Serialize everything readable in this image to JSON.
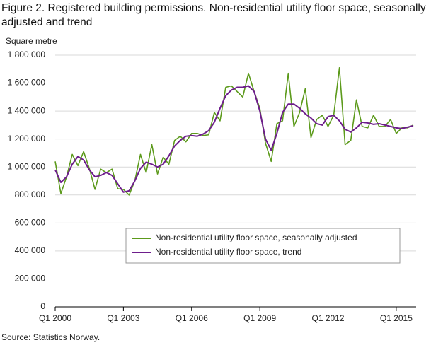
{
  "chart_data": {
    "type": "line",
    "title": "Figure 2. Registered building permissions. Non-residential utility floor space, seasonally adjusted and trend",
    "y_label": "Square metre",
    "source": "Source: Statistics Norway.",
    "categories": [
      "Q1 2000",
      null,
      null,
      null,
      null,
      null,
      null,
      null,
      null,
      null,
      null,
      null,
      "Q1 2003",
      null,
      null,
      null,
      null,
      null,
      null,
      null,
      null,
      null,
      null,
      null,
      "Q1 2006",
      null,
      null,
      null,
      null,
      null,
      null,
      null,
      null,
      null,
      null,
      null,
      "Q1 2009",
      null,
      null,
      null,
      null,
      null,
      null,
      null,
      null,
      null,
      null,
      null,
      "Q1 2012",
      null,
      null,
      null,
      null,
      null,
      null,
      null,
      null,
      null,
      null,
      null,
      "Q1 2015",
      null,
      null,
      null
    ],
    "series": [
      {
        "name": "Non-residential utility floor space, seasonally adjusted",
        "color": "#5c9a1b",
        "values": [
          1040000,
          810000,
          930000,
          1090000,
          1010000,
          1110000,
          990000,
          840000,
          985000,
          960000,
          985000,
          845000,
          840000,
          800000,
          900000,
          1090000,
          960000,
          1160000,
          950000,
          1070000,
          1020000,
          1190000,
          1220000,
          1180000,
          1240000,
          1240000,
          1225000,
          1230000,
          1390000,
          1330000,
          1570000,
          1580000,
          1540000,
          1500000,
          1670000,
          1540000,
          1420000,
          1170000,
          1040000,
          1310000,
          1330000,
          1670000,
          1290000,
          1390000,
          1560000,
          1210000,
          1340000,
          1370000,
          1290000,
          1370000,
          1710000,
          1160000,
          1190000,
          1480000,
          1290000,
          1280000,
          1370000,
          1290000,
          1290000,
          1340000,
          1240000,
          1280000,
          1280000,
          1300000
        ]
      },
      {
        "name": "Non-residential utility floor space, trend",
        "color": "#6e1e8c",
        "values": [
          980000,
          890000,
          930000,
          1020000,
          1075000,
          1050000,
          980000,
          930000,
          940000,
          960000,
          940000,
          880000,
          820000,
          830000,
          900000,
          990000,
          1035000,
          1020000,
          1000000,
          1020000,
          1080000,
          1150000,
          1190000,
          1220000,
          1225000,
          1220000,
          1235000,
          1260000,
          1320000,
          1420000,
          1510000,
          1550000,
          1570000,
          1570000,
          1580000,
          1540000,
          1400000,
          1200000,
          1120000,
          1240000,
          1390000,
          1450000,
          1450000,
          1420000,
          1380000,
          1350000,
          1310000,
          1300000,
          1360000,
          1370000,
          1330000,
          1270000,
          1250000,
          1280000,
          1320000,
          1315000,
          1305000,
          1310000,
          1300000,
          1290000,
          1280000,
          1275000,
          1285000,
          1295000
        ]
      }
    ],
    "ylim": [
      0,
      1800000
    ],
    "yticks": [
      0,
      {
        "value": 200000,
        "label": "200 000"
      },
      {
        "value": 400000,
        "label": "400 000"
      },
      {
        "value": 600000,
        "label": "600 000"
      },
      {
        "value": 800000,
        "label": "800 000"
      },
      {
        "value": 1000000,
        "label": "1 000 000"
      },
      {
        "value": 1200000,
        "label": "1 200 000"
      },
      {
        "value": 1400000,
        "label": "1 400 000"
      },
      {
        "value": 1600000,
        "label": "1 600 000"
      },
      {
        "value": 1800000,
        "label": "1 800 000"
      }
    ],
    "grid": true
  }
}
